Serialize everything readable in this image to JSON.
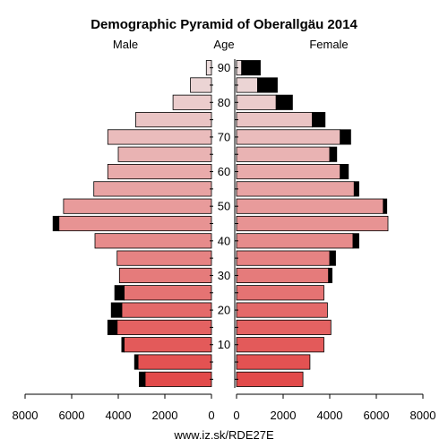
{
  "chart_data": {
    "type": "bar",
    "title": "Demographic Pyramid of Oberallgäu 2014",
    "left_label": "Male",
    "center_label": "Age",
    "right_label": "Female",
    "footer": "www.iz.sk/RDE27E",
    "x_ticks_left": [
      "8000",
      "6000",
      "4000",
      "2000",
      "0"
    ],
    "x_ticks_right": [
      "0",
      "2000",
      "4000",
      "6000",
      "8000"
    ],
    "xlim": [
      0,
      8000
    ],
    "age_ticks": [
      "10",
      "20",
      "30",
      "40",
      "50",
      "60",
      "70",
      "80",
      "90"
    ],
    "age_groups": [
      "0-4",
      "5-9",
      "10-14",
      "15-19",
      "20-24",
      "25-29",
      "30-34",
      "35-39",
      "40-44",
      "45-49",
      "50-54",
      "55-59",
      "60-64",
      "65-69",
      "70-74",
      "75-79",
      "80-84",
      "85-89",
      "90+"
    ],
    "series": [
      {
        "name": "Male",
        "values": [
          2850,
          3150,
          3750,
          4050,
          3850,
          3750,
          3950,
          4050,
          5000,
          6550,
          6350,
          5050,
          4450,
          4000,
          4450,
          3250,
          1650,
          900,
          220
        ],
        "excess": [
          250,
          150,
          100,
          400,
          450,
          400,
          0,
          0,
          0,
          250,
          0,
          0,
          0,
          0,
          0,
          0,
          0,
          0,
          0
        ]
      },
      {
        "name": "Female",
        "values": [
          2850,
          3150,
          3750,
          4050,
          3900,
          3750,
          3950,
          4000,
          5000,
          6500,
          6300,
          5050,
          4450,
          4000,
          4450,
          3250,
          1700,
          900,
          220
        ],
        "excess": [
          0,
          0,
          0,
          0,
          0,
          0,
          150,
          250,
          250,
          0,
          150,
          200,
          350,
          300,
          450,
          550,
          700,
          850,
          800
        ]
      }
    ],
    "colors": {
      "young": "#e24a4a",
      "old": "#ecdcdc",
      "excess": "#000000",
      "axis": "#000000"
    }
  }
}
